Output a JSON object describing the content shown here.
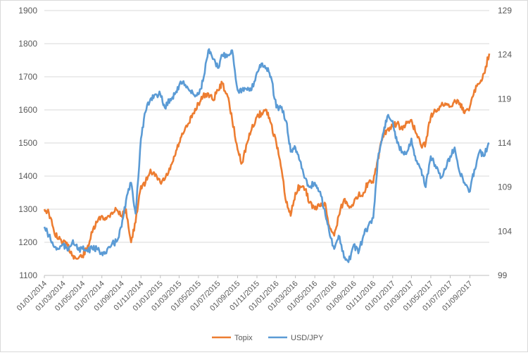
{
  "chart_data": {
    "type": "line",
    "title": "",
    "xlabel": "",
    "ylabel_left": "",
    "ylabel_right": "",
    "x_labels": [
      "01/01/2014",
      "01/03/2014",
      "01/05/2014",
      "01/07/2014",
      "01/09/2014",
      "01/11/2014",
      "01/01/2015",
      "01/03/2015",
      "01/05/2015",
      "01/07/2015",
      "01/09/2015",
      "01/11/2015",
      "01/01/2016",
      "01/03/2016",
      "01/05/2016",
      "01/07/2016",
      "01/09/2016",
      "01/11/2016",
      "01/01/2017",
      "01/03/2017",
      "01/05/2017",
      "01/07/2017",
      "01/09/2017"
    ],
    "ylim_left": [
      1100,
      1900
    ],
    "ylim_right": [
      99,
      129
    ],
    "yticks_left": [
      1100,
      1200,
      1300,
      1400,
      1500,
      1600,
      1700,
      1800,
      1900
    ],
    "yticks_right": [
      99,
      104,
      109,
      114,
      119,
      124,
      129
    ],
    "grid": true,
    "legend_position": "bottom",
    "series": [
      {
        "name": "Topix",
        "axis": "left",
        "color": "#ED7D31",
        "x": [
          "01/01/2014",
          "15/01/2014",
          "01/02/2014",
          "15/02/2014",
          "01/03/2014",
          "15/03/2014",
          "01/04/2014",
          "15/04/2014",
          "01/05/2014",
          "15/05/2014",
          "01/06/2014",
          "15/06/2014",
          "01/07/2014",
          "15/07/2014",
          "01/08/2014",
          "15/08/2014",
          "01/09/2014",
          "15/09/2014",
          "01/10/2014",
          "15/10/2014",
          "01/11/2014",
          "15/11/2014",
          "01/12/2014",
          "15/12/2014",
          "01/01/2015",
          "15/01/2015",
          "01/02/2015",
          "15/02/2015",
          "01/03/2015",
          "15/03/2015",
          "01/04/2015",
          "15/04/2015",
          "01/05/2015",
          "15/05/2015",
          "01/06/2015",
          "15/06/2015",
          "01/07/2015",
          "15/07/2015",
          "01/08/2015",
          "15/08/2015",
          "01/09/2015",
          "15/09/2015",
          "01/10/2015",
          "15/10/2015",
          "01/11/2015",
          "15/11/2015",
          "01/12/2015",
          "15/12/2015",
          "01/01/2016",
          "15/01/2016",
          "01/02/2016",
          "15/02/2016",
          "01/03/2016",
          "15/03/2016",
          "01/04/2016",
          "15/04/2016",
          "01/05/2016",
          "15/05/2016",
          "01/06/2016",
          "15/06/2016",
          "01/07/2016",
          "15/07/2016",
          "01/08/2016",
          "15/08/2016",
          "01/09/2016",
          "15/09/2016",
          "01/10/2016",
          "15/10/2016",
          "01/11/2016",
          "15/11/2016",
          "01/12/2016",
          "15/12/2016",
          "01/01/2017",
          "15/01/2017",
          "01/02/2017",
          "15/02/2017",
          "01/03/2017",
          "15/03/2017",
          "01/04/2017",
          "15/04/2017",
          "01/05/2017",
          "15/05/2017",
          "01/06/2017",
          "15/06/2017",
          "01/07/2017",
          "15/07/2017",
          "01/08/2017",
          "15/08/2017",
          "01/09/2017",
          "15/09/2017",
          "01/10/2017",
          "15/10/2017",
          "01/11/2017"
        ],
        "values": [
          1300,
          1290,
          1230,
          1210,
          1200,
          1190,
          1160,
          1150,
          1160,
          1180,
          1230,
          1260,
          1280,
          1270,
          1290,
          1300,
          1280,
          1300,
          1200,
          1260,
          1370,
          1380,
          1420,
          1400,
          1380,
          1390,
          1420,
          1460,
          1500,
          1530,
          1560,
          1590,
          1620,
          1640,
          1650,
          1630,
          1660,
          1680,
          1640,
          1570,
          1480,
          1440,
          1500,
          1540,
          1580,
          1590,
          1600,
          1560,
          1500,
          1430,
          1320,
          1280,
          1350,
          1370,
          1360,
          1320,
          1300,
          1310,
          1320,
          1250,
          1220,
          1280,
          1330,
          1310,
          1320,
          1340,
          1350,
          1380,
          1380,
          1450,
          1520,
          1540,
          1550,
          1560,
          1540,
          1560,
          1570,
          1530,
          1490,
          1500,
          1580,
          1600,
          1610,
          1620,
          1610,
          1630,
          1620,
          1590,
          1610,
          1660,
          1680,
          1710,
          1770
        ]
      },
      {
        "name": "USD/JPY",
        "axis": "right",
        "color": "#5B9BD5",
        "x": [
          "01/01/2014",
          "15/01/2014",
          "01/02/2014",
          "15/02/2014",
          "01/03/2014",
          "15/03/2014",
          "01/04/2014",
          "15/04/2014",
          "01/05/2014",
          "15/05/2014",
          "01/06/2014",
          "15/06/2014",
          "01/07/2014",
          "15/07/2014",
          "01/08/2014",
          "15/08/2014",
          "01/09/2014",
          "15/09/2014",
          "01/10/2014",
          "15/10/2014",
          "01/11/2014",
          "15/11/2014",
          "01/12/2014",
          "15/12/2014",
          "01/01/2015",
          "15/01/2015",
          "01/02/2015",
          "15/02/2015",
          "01/03/2015",
          "15/03/2015",
          "01/04/2015",
          "15/04/2015",
          "01/05/2015",
          "15/05/2015",
          "01/06/2015",
          "15/06/2015",
          "01/07/2015",
          "15/07/2015",
          "01/08/2015",
          "15/08/2015",
          "01/09/2015",
          "15/09/2015",
          "01/10/2015",
          "15/10/2015",
          "01/11/2015",
          "15/11/2015",
          "01/12/2015",
          "15/12/2015",
          "01/01/2016",
          "15/01/2016",
          "01/02/2016",
          "15/02/2016",
          "01/03/2016",
          "15/03/2016",
          "01/04/2016",
          "15/04/2016",
          "01/05/2016",
          "15/05/2016",
          "01/06/2016",
          "15/06/2016",
          "01/07/2016",
          "15/07/2016",
          "01/08/2016",
          "15/08/2016",
          "01/09/2016",
          "15/09/2016",
          "01/10/2016",
          "15/10/2016",
          "01/11/2016",
          "15/11/2016",
          "01/12/2016",
          "15/12/2016",
          "01/01/2017",
          "15/01/2017",
          "01/02/2017",
          "15/02/2017",
          "01/03/2017",
          "15/03/2017",
          "01/04/2017",
          "15/04/2017",
          "01/05/2017",
          "15/05/2017",
          "01/06/2017",
          "15/06/2017",
          "01/07/2017",
          "15/07/2017",
          "01/08/2017",
          "15/08/2017",
          "01/09/2017",
          "15/09/2017",
          "01/10/2017",
          "15/10/2017",
          "01/11/2017"
        ],
        "values": [
          104.5,
          103.5,
          102.2,
          102.0,
          102.5,
          101.8,
          103.0,
          102.0,
          102.0,
          101.8,
          102.0,
          102.0,
          101.6,
          101.5,
          102.5,
          102.8,
          104.5,
          107.5,
          109.5,
          106.0,
          114.5,
          117.5,
          119.0,
          119.5,
          119.5,
          118.0,
          119.0,
          119.5,
          120.5,
          121.0,
          120.0,
          119.5,
          119.5,
          121.0,
          124.5,
          123.5,
          122.5,
          124.0,
          124.0,
          124.5,
          120.0,
          120.0,
          120.0,
          120.0,
          122.0,
          123.0,
          122.5,
          121.5,
          118.0,
          118.0,
          116.5,
          113.0,
          113.5,
          112.0,
          110.0,
          109.0,
          109.5,
          108.5,
          106.5,
          104.0,
          102.0,
          103.5,
          101.0,
          100.5,
          102.5,
          101.5,
          103.5,
          104.5,
          105.5,
          112.0,
          115.0,
          117.0,
          116.5,
          114.0,
          113.0,
          113.0,
          114.5,
          112.0,
          111.0,
          109.0,
          112.5,
          111.5,
          110.0,
          111.0,
          112.5,
          113.5,
          110.5,
          109.5,
          108.5,
          111.0,
          113.0,
          112.5,
          114.0
        ]
      }
    ]
  }
}
